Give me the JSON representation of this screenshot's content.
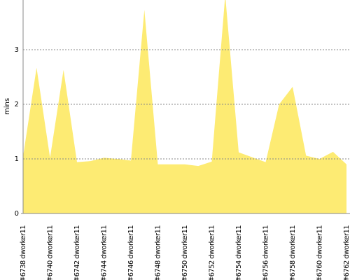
{
  "chart_data": {
    "type": "area",
    "y_label": "mins",
    "categories": [
      "#6738 dworker11",
      null,
      "#6740 dworker11",
      null,
      "#6742 dworker11",
      null,
      "#6744 dworker11",
      null,
      "#6746 dworker11",
      null,
      "#6748 dworker11",
      null,
      "#6750 dworker11",
      null,
      "#6752 dworker11",
      null,
      "#6754 dworker11",
      null,
      "#6756 dworker11",
      null,
      "#6758 dworker11",
      null,
      "#6760 dworker11",
      null,
      "#6762 dworker11"
    ],
    "values": [
      1.05,
      2.67,
      1.02,
      2.63,
      0.94,
      0.96,
      1.02,
      1.0,
      0.97,
      3.73,
      0.9,
      0.9,
      0.9,
      0.87,
      0.95,
      4.0,
      1.12,
      1.03,
      0.94,
      2.0,
      2.32,
      1.06,
      1.0,
      1.13,
      0.9
    ],
    "color": "#fdeb73",
    "ylim": [
      0,
      3.91
    ],
    "yticks": [
      0,
      1,
      2,
      3
    ],
    "grid": true
  }
}
